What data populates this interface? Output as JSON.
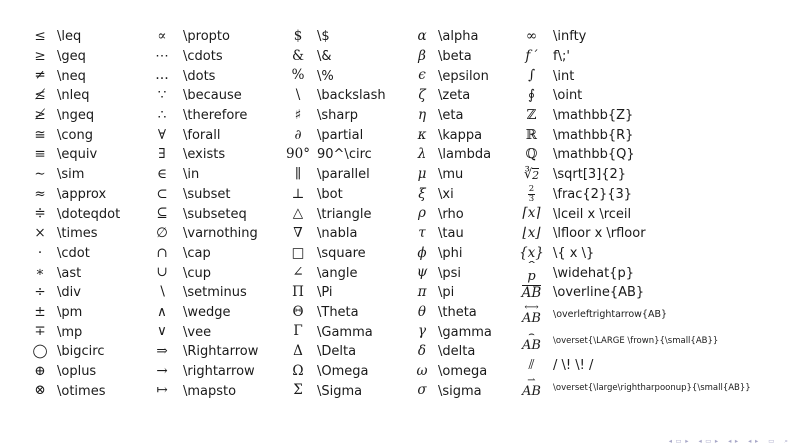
{
  "accent_colors": {
    "text": "#1a1a1a",
    "background": "#ffffff",
    "nav_icons": "#a8a8c8"
  },
  "table": {
    "columns": [
      {
        "rows": [
          {
            "sym": "≤",
            "cmd": "\\leq"
          },
          {
            "sym": "≥",
            "cmd": "\\geq"
          },
          {
            "sym": "≠",
            "cmd": "\\neq"
          },
          {
            "sym": "≰",
            "cmd": "\\nleq"
          },
          {
            "sym": "≱",
            "cmd": "\\ngeq"
          },
          {
            "sym": "≅",
            "cmd": "\\cong"
          },
          {
            "sym": "≡",
            "cmd": "\\equiv"
          },
          {
            "sym": "∼",
            "cmd": "\\sim"
          },
          {
            "sym": "≈",
            "cmd": "\\approx"
          },
          {
            "sym": "≑",
            "cmd": "\\doteqdot"
          },
          {
            "sym": "×",
            "cmd": "\\times"
          },
          {
            "sym": "·",
            "cmd": "\\cdot"
          },
          {
            "sym": "∗",
            "cmd": "\\ast"
          },
          {
            "sym": "÷",
            "cmd": "\\div"
          },
          {
            "sym": "±",
            "cmd": "\\pm"
          },
          {
            "sym": "∓",
            "cmd": "\\mp"
          },
          {
            "sym": "◯",
            "cmd": "\\bigcirc"
          },
          {
            "sym": "⊕",
            "cmd": "\\oplus"
          },
          {
            "sym": "⊗",
            "cmd": "\\otimes"
          }
        ]
      },
      {
        "rows": [
          {
            "sym": "∝",
            "cmd": "\\propto"
          },
          {
            "sym": "⋯",
            "cmd": "\\cdots"
          },
          {
            "sym": "…",
            "cmd": "\\dots"
          },
          {
            "sym": "∵",
            "cmd": "\\because"
          },
          {
            "sym": "∴",
            "cmd": "\\therefore"
          },
          {
            "sym": "∀",
            "cmd": "\\forall"
          },
          {
            "sym": "∃",
            "cmd": "\\exists"
          },
          {
            "sym": "∈",
            "cmd": "\\in"
          },
          {
            "sym": "⊂",
            "cmd": "\\subset"
          },
          {
            "sym": "⊆",
            "cmd": "\\subseteq"
          },
          {
            "sym": "∅",
            "cmd": "\\varnothing"
          },
          {
            "sym": "∩",
            "cmd": "\\cap"
          },
          {
            "sym": "∪",
            "cmd": "\\cup"
          },
          {
            "sym": "∖",
            "cmd": "\\setminus"
          },
          {
            "sym": "∧",
            "cmd": "\\wedge"
          },
          {
            "sym": "∨",
            "cmd": "\\vee"
          },
          {
            "sym": "⇒",
            "cmd": "\\Rightarrow"
          },
          {
            "sym": "→",
            "cmd": "\\rightarrow"
          },
          {
            "sym": "↦",
            "cmd": "\\mapsto"
          }
        ]
      },
      {
        "rows": [
          {
            "sym": "$",
            "cmd": "\\$"
          },
          {
            "sym": "&",
            "cmd": "\\&"
          },
          {
            "sym": "%",
            "cmd": "\\%"
          },
          {
            "sym": "\\",
            "cmd": "\\backslash"
          },
          {
            "sym": "♯",
            "cmd": "\\sharp"
          },
          {
            "sym": "∂",
            "cmd": "\\partial",
            "it": true
          },
          {
            "sym": "90°",
            "cmd": "90^\\circ"
          },
          {
            "sym": "∥",
            "cmd": "\\parallel"
          },
          {
            "sym": "⊥",
            "cmd": "\\bot"
          },
          {
            "sym": "△",
            "cmd": "\\triangle"
          },
          {
            "sym": "∇",
            "cmd": "\\nabla"
          },
          {
            "sym": "□",
            "cmd": "\\square"
          },
          {
            "sym": "∠",
            "cmd": "\\angle"
          },
          {
            "sym": "Π",
            "cmd": "\\Pi"
          },
          {
            "sym": "Θ",
            "cmd": "\\Theta"
          },
          {
            "sym": "Γ",
            "cmd": "\\Gamma"
          },
          {
            "sym": "Δ",
            "cmd": "\\Delta"
          },
          {
            "sym": "Ω",
            "cmd": "\\Omega"
          },
          {
            "sym": "Σ",
            "cmd": "\\Sigma"
          }
        ]
      },
      {
        "rows": [
          {
            "sym": "α",
            "cmd": "\\alpha",
            "it": true
          },
          {
            "sym": "β",
            "cmd": "\\beta",
            "it": true
          },
          {
            "sym": "ϵ",
            "cmd": "\\epsilon",
            "it": true
          },
          {
            "sym": "ζ",
            "cmd": "\\zeta",
            "it": true
          },
          {
            "sym": "η",
            "cmd": "\\eta",
            "it": true
          },
          {
            "sym": "κ",
            "cmd": "\\kappa",
            "it": true
          },
          {
            "sym": "λ",
            "cmd": "\\lambda",
            "it": true
          },
          {
            "sym": "μ",
            "cmd": "\\mu",
            "it": true
          },
          {
            "sym": "ξ",
            "cmd": "\\xi",
            "it": true
          },
          {
            "sym": "ρ",
            "cmd": "\\rho",
            "it": true
          },
          {
            "sym": "τ",
            "cmd": "\\tau",
            "it": true
          },
          {
            "sym": "ϕ",
            "cmd": "\\phi",
            "it": true
          },
          {
            "sym": "ψ",
            "cmd": "\\psi",
            "it": true
          },
          {
            "sym": "π",
            "cmd": "\\pi",
            "it": true
          },
          {
            "sym": "θ",
            "cmd": "\\theta",
            "it": true
          },
          {
            "sym": "γ",
            "cmd": "\\gamma",
            "it": true
          },
          {
            "sym": "δ",
            "cmd": "\\delta",
            "it": true
          },
          {
            "sym": "ω",
            "cmd": "\\omega",
            "it": true
          },
          {
            "sym": "σ",
            "cmd": "\\sigma",
            "it": true
          }
        ]
      },
      {
        "rows": [
          {
            "sym": "∞",
            "cmd": "\\infty"
          },
          {
            "sym": "f ′",
            "cmd": "f\\;'",
            "it": true
          },
          {
            "sym": "∫",
            "cmd": "\\int"
          },
          {
            "sym": "∮",
            "cmd": "\\oint"
          },
          {
            "sym": "ℤ",
            "cmd": "\\mathbb{Z}"
          },
          {
            "sym": "ℝ",
            "cmd": "\\mathbb{R}"
          },
          {
            "sym": "ℚ",
            "cmd": "\\mathbb{Q}"
          },
          {
            "sym": "2",
            "cmd": "\\sqrt[3]{2}",
            "deco": "root3"
          },
          {
            "sym": "2/3",
            "cmd": "\\frac{2}{3}",
            "deco": "frac"
          },
          {
            "sym": "⌈x⌉",
            "cmd": "\\lceil x \\rceil",
            "it": true
          },
          {
            "sym": "⌊x⌋",
            "cmd": "\\lfloor x \\rfloor",
            "it": true
          },
          {
            "sym": "{x}",
            "cmd": "\\{ x \\}",
            "it": true
          },
          {
            "sym": "p",
            "cmd": "\\widehat{p}",
            "deco": "hat"
          },
          {
            "sym": "AB",
            "cmd": "\\overline{AB}",
            "deco": "overline",
            "it": true
          },
          {
            "sym": "AB",
            "cmd": "\\overleftrightarrow{AB}",
            "deco": "arrow-lr",
            "size": "midcmd"
          },
          {
            "sym": "AB",
            "cmd": "\\overset{\\LARGE \\frown}{\\small{AB}}",
            "deco": "frown",
            "size": "smallcmd"
          },
          {
            "sym": "⫽",
            "cmd": "/ \\! \\! /"
          },
          {
            "sym": "AB",
            "cmd": "\\overset{\\large\\rightharpoonup}{\\small{AB}}",
            "deco": "harpoon",
            "size": "smallcmd"
          }
        ]
      }
    ]
  },
  "navigation": {
    "items": [
      {
        "glyph": "◂",
        "name": "slide-back-icon"
      },
      {
        "glyph": "▭",
        "name": "slide-icon"
      },
      {
        "glyph": "▸",
        "name": "slide-forward-icon"
      },
      {
        "glyph": "◂",
        "name": "frame-back-icon"
      },
      {
        "glyph": "▭",
        "name": "frame-icon"
      },
      {
        "glyph": "▸",
        "name": "frame-forward-icon"
      },
      {
        "glyph": "◂",
        "name": "section-back-icon"
      },
      {
        "glyph": "▸",
        "name": "section-forward-icon"
      },
      {
        "glyph": "◂",
        "name": "subsection-back-icon"
      },
      {
        "glyph": "▸",
        "name": "subsection-forward-icon"
      },
      {
        "glyph": "▭",
        "name": "appendix-icon"
      },
      {
        "glyph": "⌕",
        "name": "search-icon"
      }
    ]
  }
}
